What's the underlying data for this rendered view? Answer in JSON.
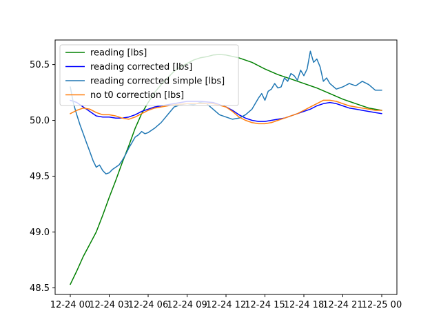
{
  "chart_data": {
    "type": "line",
    "title": "",
    "xlabel": "",
    "ylabel": "",
    "xlim": [
      "2023-12-24 00:00",
      "2023-12-25 00:00"
    ],
    "ylim": [
      48.44,
      50.72
    ],
    "grid": false,
    "legend_position": "top-left",
    "x_tick_labels": [
      "12-24 00",
      "12-24 03",
      "12-24 06",
      "12-24 09",
      "12-24 12",
      "12-24 15",
      "12-24 18",
      "12-24 21",
      "12-25 00"
    ],
    "y_ticks": [
      48.5,
      49.0,
      49.5,
      50.0,
      50.5
    ],
    "y_tick_labels": [
      "48.5",
      "49.0",
      "49.5",
      "50.0",
      "50.5"
    ],
    "series": [
      {
        "name": "reading [lbs]",
        "color": "#008000",
        "x_hours": [
          0,
          0.5,
          1,
          1.5,
          2,
          2.5,
          3,
          3.5,
          4,
          4.5,
          5,
          5.5,
          6,
          6.5,
          7,
          7.5,
          8,
          8.5,
          9,
          9.5,
          10,
          10.5,
          11,
          11.5,
          12,
          13,
          14,
          15,
          16,
          17,
          18,
          19,
          20,
          21,
          22,
          23,
          24
        ],
        "values": [
          48.53,
          48.65,
          48.78,
          48.89,
          49.0,
          49.15,
          49.31,
          49.46,
          49.62,
          49.77,
          49.93,
          50.06,
          50.16,
          50.25,
          50.32,
          50.38,
          50.44,
          50.48,
          50.51,
          50.54,
          50.56,
          50.57,
          50.585,
          50.59,
          50.585,
          50.56,
          50.52,
          50.46,
          50.41,
          50.37,
          50.33,
          50.29,
          50.24,
          50.19,
          50.15,
          50.11,
          50.09
        ]
      },
      {
        "name": "reading corrected [lbs]",
        "color": "#0000ff",
        "x_hours": [
          0,
          0.5,
          1,
          1.5,
          2,
          2.5,
          3,
          3.5,
          4,
          4.5,
          5,
          5.5,
          6,
          6.5,
          7,
          8,
          9,
          10,
          11,
          12,
          12.5,
          13,
          13.5,
          14,
          14.5,
          15,
          15.5,
          16,
          16.5,
          17,
          17.5,
          18,
          18.5,
          19,
          19.5,
          20,
          20.5,
          21,
          21.5,
          22,
          22.5,
          23,
          23.5,
          24
        ],
        "values": [
          50.18,
          50.16,
          50.12,
          50.08,
          50.04,
          50.03,
          50.03,
          50.02,
          50.02,
          50.03,
          50.05,
          50.08,
          50.1,
          50.12,
          50.13,
          50.15,
          50.17,
          50.17,
          50.16,
          50.12,
          50.09,
          50.05,
          50.02,
          50.0,
          49.99,
          49.99,
          50.0,
          50.01,
          50.02,
          50.04,
          50.06,
          50.08,
          50.1,
          50.13,
          50.15,
          50.16,
          50.15,
          50.13,
          50.11,
          50.1,
          50.09,
          50.08,
          50.07,
          50.06
        ]
      },
      {
        "name": "reading corrected simple [lbs]",
        "color": "#1f77b4",
        "x_hours": [
          0,
          0.25,
          0.5,
          0.75,
          1,
          1.25,
          1.5,
          1.75,
          2,
          2.25,
          2.5,
          2.75,
          3,
          3.25,
          3.5,
          3.75,
          4,
          4.25,
          4.5,
          4.75,
          5,
          5.25,
          5.5,
          5.75,
          6,
          6.5,
          7,
          7.5,
          8,
          8.5,
          9,
          9.5,
          10,
          10.5,
          11,
          11.5,
          12,
          12.5,
          13,
          13.5,
          14,
          14.25,
          14.5,
          14.75,
          15,
          15.25,
          15.5,
          15.75,
          16,
          16.25,
          16.5,
          16.75,
          17,
          17.25,
          17.5,
          17.75,
          18,
          18.25,
          18.5,
          18.75,
          19,
          19.25,
          19.5,
          19.75,
          20,
          20.5,
          21,
          21.5,
          22,
          22.5,
          23,
          23.5,
          24
        ],
        "values": [
          50.3,
          50.15,
          50.05,
          49.96,
          49.88,
          49.8,
          49.72,
          49.64,
          49.58,
          49.6,
          49.55,
          49.52,
          49.53,
          49.56,
          49.58,
          49.6,
          49.64,
          49.69,
          49.75,
          49.8,
          49.85,
          49.87,
          49.9,
          49.88,
          49.89,
          49.93,
          49.98,
          50.05,
          50.12,
          50.14,
          50.15,
          50.14,
          50.16,
          50.15,
          50.1,
          50.05,
          50.03,
          50.01,
          50.02,
          50.05,
          50.1,
          50.15,
          50.2,
          50.24,
          50.18,
          50.26,
          50.28,
          50.33,
          50.29,
          50.3,
          50.38,
          50.35,
          50.42,
          50.4,
          50.36,
          50.45,
          50.4,
          50.46,
          50.62,
          50.52,
          50.55,
          50.48,
          50.35,
          50.38,
          50.33,
          50.28,
          50.3,
          50.33,
          50.31,
          50.35,
          50.32,
          50.27,
          50.27
        ]
      },
      {
        "name": "no t0 correction [lbs]",
        "color": "#ff7f0e",
        "x_hours": [
          0,
          0.5,
          1,
          1.5,
          2,
          2.5,
          3,
          3.5,
          4,
          4.5,
          5,
          5.5,
          6,
          6.5,
          7,
          8,
          9,
          10,
          11,
          12,
          12.5,
          13,
          13.5,
          14,
          14.5,
          15,
          15.5,
          16,
          16.5,
          17,
          17.5,
          18,
          18.5,
          19,
          19.5,
          20,
          20.5,
          21,
          21.5,
          22,
          22.5,
          23,
          23.5,
          24
        ],
        "values": [
          50.06,
          50.09,
          50.11,
          50.1,
          50.07,
          50.05,
          50.05,
          50.04,
          50.02,
          50.01,
          50.03,
          50.06,
          50.09,
          50.11,
          50.12,
          50.14,
          50.15,
          50.15,
          50.15,
          50.12,
          50.08,
          50.03,
          50.0,
          49.98,
          49.97,
          49.97,
          49.98,
          50.0,
          50.02,
          50.04,
          50.06,
          50.09,
          50.12,
          50.15,
          50.18,
          50.18,
          50.17,
          50.15,
          50.13,
          50.12,
          50.11,
          50.1,
          50.09,
          50.09
        ]
      }
    ]
  }
}
